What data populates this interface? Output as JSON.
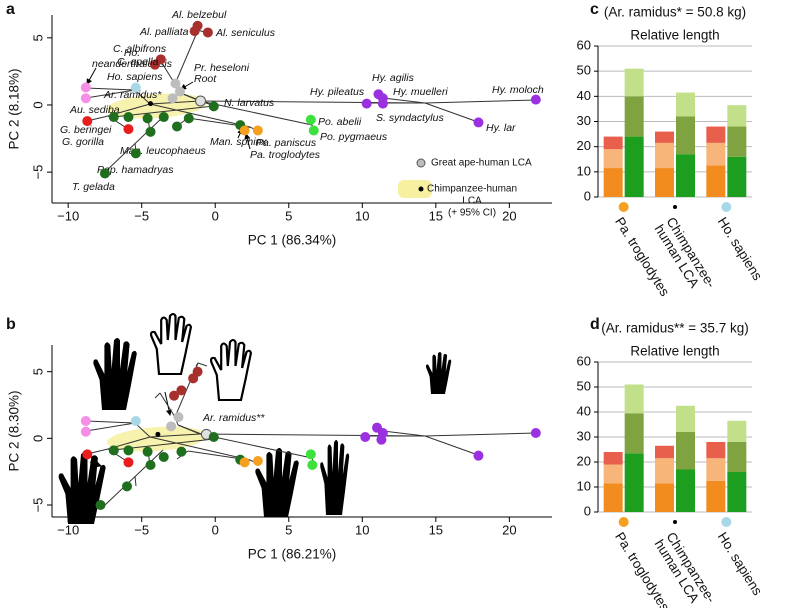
{
  "chart_data": [
    {
      "type": "scatter",
      "panel": "a",
      "xlabel": "PC 1 (86.34%)",
      "ylabel": "PC 2 (8.18%)",
      "xlim": [
        -11.1,
        22.9
      ],
      "ylim": [
        -7.3,
        6.7
      ],
      "xticks": [
        {
          "value": -10,
          "label": "−10"
        },
        {
          "value": -5,
          "label": "−5"
        },
        0,
        5,
        10,
        15,
        20
      ],
      "yticks": [
        {
          "value": -5,
          "label": "−5"
        },
        0,
        5
      ],
      "legend": [
        {
          "label": "Great ape-human LCA",
          "color": "#bdbdbd"
        },
        {
          "label": [
            "Chimpanzee-human",
            "LCA",
            "(+ 95% CI)"
          ],
          "color": "#000000"
        }
      ],
      "points": [
        {
          "x": -8.8,
          "y": 1.3,
          "color": "#f58ee6",
          "label": [
            "Ho.",
            "neanderthalensis"
          ]
        },
        {
          "x": -8.8,
          "y": 0.5,
          "color": "#f58ee6",
          "label": "Au. sediba"
        },
        {
          "x": -5.4,
          "y": 1.3,
          "color": "#a8d8e8",
          "label": "Ho. sapiens"
        },
        {
          "x": -8.7,
          "y": -1.2,
          "color": "#e81e1e",
          "label": "G. beringei"
        },
        {
          "x": -5.9,
          "y": -1.8,
          "color": "#e81e1e",
          "label": "G. gorilla"
        },
        {
          "x": -1.2,
          "y": 5.9,
          "color": "#a8302c",
          "label": "Al. belzebul"
        },
        {
          "x": -1.4,
          "y": 5.5,
          "color": "#a8302c",
          "label": "Al. palliata"
        },
        {
          "x": -0.5,
          "y": 5.4,
          "color": "#a8302c",
          "label": "Al. seniculus"
        },
        {
          "x": -3.7,
          "y": 3.4,
          "color": "#a8302c",
          "label": "C. albifrons"
        },
        {
          "x": -4.1,
          "y": 3.0,
          "color": "#a8302c",
          "label": "C. apella"
        },
        {
          "x": -2.7,
          "y": 1.6,
          "color": "#bdbdbd",
          "label": "Pr. heseloni"
        },
        {
          "x": -2.4,
          "y": 1.0,
          "color": "#bdbdbd",
          "label": "Root"
        },
        {
          "x": -2.9,
          "y": 0.5,
          "color": "#bdbdbd",
          "label": "Ar. ramidus*"
        },
        {
          "x": -4.4,
          "y": 0.1,
          "color": "#000000"
        },
        {
          "x": -1.0,
          "y": 0.3,
          "color": "#e0e0e0"
        },
        {
          "x": -0.1,
          "y": -0.1,
          "color": "#1f6f1f",
          "label": "N. larvatus"
        },
        {
          "x": -6.9,
          "y": -0.9,
          "color": "#1f6f1f"
        },
        {
          "x": -5.9,
          "y": -0.9,
          "color": "#1f6f1f"
        },
        {
          "x": -4.6,
          "y": -1.0,
          "color": "#1f6f1f"
        },
        {
          "x": -3.5,
          "y": -0.9,
          "color": "#1f6f1f"
        },
        {
          "x": -1.8,
          "y": -1.0,
          "color": "#1f6f1f"
        },
        {
          "x": -4.4,
          "y": -2.0,
          "color": "#1f6f1f",
          "label": "Man. leucophaeus"
        },
        {
          "x": -5.4,
          "y": -3.6,
          "color": "#1f6f1f",
          "label": "Pap. hamadryas"
        },
        {
          "x": -7.5,
          "y": -5.1,
          "color": "#1f6f1f",
          "label": "T. gelada"
        },
        {
          "x": 1.7,
          "y": -1.5,
          "color": "#1f6f1f",
          "label": "Man. sphinx"
        },
        {
          "x": 2.9,
          "y": -1.9,
          "color": "#f5a020",
          "label": "Pa. paniscus"
        },
        {
          "x": 2.0,
          "y": -1.9,
          "color": "#f5a020",
          "label": "Pa. troglodytes"
        },
        {
          "x": 6.5,
          "y": -1.1,
          "color": "#3ee03e",
          "label": "Po. abelii"
        },
        {
          "x": 6.7,
          "y": -1.9,
          "color": "#3ee03e",
          "label": "Po. pygmaeus"
        },
        {
          "x": 10.3,
          "y": 0.1,
          "color": "#9b30e0",
          "label": "Hy. pileatus"
        },
        {
          "x": 11.1,
          "y": 0.8,
          "color": "#9b30e0",
          "label": "Hy. agilis"
        },
        {
          "x": 11.4,
          "y": 0.5,
          "color": "#9b30e0",
          "label": "Hy. muelleri"
        },
        {
          "x": 11.4,
          "y": 0.1,
          "color": "#9b30e0",
          "label": "S. syndactylus"
        },
        {
          "x": 21.8,
          "y": 0.4,
          "color": "#9b30e0",
          "label": "Hy. moloch"
        },
        {
          "x": 17.9,
          "y": -1.3,
          "color": "#9b30e0",
          "label": "Hy. lar"
        },
        {
          "x": -2.6,
          "y": -1.6,
          "color": "#1f6f1f"
        }
      ]
    },
    {
      "type": "scatter",
      "panel": "b",
      "xlabel": "PC 1 (86.21%)",
      "ylabel": "PC 2 (8.30%)",
      "xlim": [
        -11.1,
        22.9
      ],
      "ylim": [
        -5.9,
        7.0
      ],
      "xticks": [
        {
          "value": -10,
          "label": "−10"
        },
        {
          "value": -5,
          "label": "−5"
        },
        0,
        5,
        10,
        15,
        20
      ],
      "yticks": [
        {
          "value": -5,
          "label": "−5"
        },
        0,
        5
      ],
      "points": [
        {
          "x": -8.8,
          "y": 1.3,
          "color": "#f58ee6"
        },
        {
          "x": -8.8,
          "y": 0.5,
          "color": "#f58ee6"
        },
        {
          "x": -5.4,
          "y": 1.3,
          "color": "#a8d8e8"
        },
        {
          "x": -8.7,
          "y": -1.2,
          "color": "#e81e1e"
        },
        {
          "x": -5.9,
          "y": -1.8,
          "color": "#e81e1e"
        },
        {
          "x": -1.2,
          "y": 5.0,
          "color": "#a8302c"
        },
        {
          "x": -1.5,
          "y": 4.5,
          "color": "#a8302c"
        },
        {
          "x": -2.3,
          "y": 3.6,
          "color": "#a8302c"
        },
        {
          "x": -2.8,
          "y": 3.2,
          "color": "#a8302c"
        },
        {
          "x": -2.5,
          "y": 1.6,
          "color": "#bdbdbd"
        },
        {
          "x": -3.0,
          "y": 0.9,
          "color": "#bdbdbd",
          "label": "Ar. ramidus**"
        },
        {
          "x": -3.9,
          "y": 0.3,
          "color": "#000000"
        },
        {
          "x": -0.6,
          "y": 0.3,
          "color": "#e0e0e0"
        },
        {
          "x": -0.1,
          "y": 0.1,
          "color": "#1f6f1f"
        },
        {
          "x": -6.9,
          "y": -0.9,
          "color": "#1f6f1f"
        },
        {
          "x": -5.9,
          "y": -0.9,
          "color": "#1f6f1f"
        },
        {
          "x": -4.6,
          "y": -1.0,
          "color": "#1f6f1f"
        },
        {
          "x": -3.5,
          "y": -1.4,
          "color": "#1f6f1f"
        },
        {
          "x": -2.3,
          "y": -1.0,
          "color": "#1f6f1f"
        },
        {
          "x": -4.4,
          "y": -2.0,
          "color": "#1f6f1f"
        },
        {
          "x": -6.0,
          "y": -3.6,
          "color": "#1f6f1f"
        },
        {
          "x": -7.8,
          "y": -5.0,
          "color": "#1f6f1f"
        },
        {
          "x": 1.7,
          "y": -1.6,
          "color": "#1f6f1f"
        },
        {
          "x": 2.9,
          "y": -1.7,
          "color": "#f5a020"
        },
        {
          "x": 2.0,
          "y": -1.8,
          "color": "#f5a020"
        },
        {
          "x": 6.5,
          "y": -1.2,
          "color": "#3ee03e"
        },
        {
          "x": 6.6,
          "y": -2.0,
          "color": "#3ee03e"
        },
        {
          "x": 10.2,
          "y": 0.1,
          "color": "#9b30e0"
        },
        {
          "x": 11.0,
          "y": 0.8,
          "color": "#9b30e0"
        },
        {
          "x": 11.4,
          "y": 0.4,
          "color": "#9b30e0"
        },
        {
          "x": 11.3,
          "y": -0.1,
          "color": "#9b30e0"
        },
        {
          "x": 21.8,
          "y": 0.4,
          "color": "#9b30e0"
        },
        {
          "x": 17.9,
          "y": -1.3,
          "color": "#9b30e0"
        }
      ]
    },
    {
      "type": "stacked_bar",
      "panel": "c",
      "title": "(Ar. ramidus* = 50.8 kg)",
      "subtitle": "Relative length",
      "categories": [
        "Pa. troglodytes",
        [
          "Chimpanzee-",
          "human LCA"
        ],
        "Ho. sapiens"
      ],
      "marker_colors": [
        "#f5a020",
        "#000000",
        "#a8d8e8"
      ],
      "ylim": [
        0,
        60
      ],
      "yticks": [
        0,
        10,
        20,
        30,
        40,
        50,
        60
      ],
      "grid": true,
      "stacks": [
        {
          "series": [
            {
              "color": "#f28c1e",
              "values": [
                11.5,
                11.5,
                12.5
              ]
            },
            {
              "color": "#f7b57a",
              "values": [
                7.5,
                10,
                9
              ]
            },
            {
              "color": "#e8604c",
              "values": [
                5,
                4.5,
                6.5
              ]
            }
          ]
        },
        {
          "series": [
            {
              "color": "#1e9e1e",
              "values": [
                24,
                17,
                16
              ]
            },
            {
              "color": "#7ea340",
              "values": [
                16,
                15,
                12
              ]
            },
            {
              "color": "#c2e08a",
              "values": [
                11,
                9.5,
                8.5
              ]
            }
          ]
        }
      ]
    },
    {
      "type": "stacked_bar",
      "panel": "d",
      "title": "(Ar. ramidus** = 35.7 kg)",
      "subtitle": "Relative length",
      "categories": [
        "Pa. troglodytes",
        [
          "Chimpanzee-",
          "human LCA"
        ],
        "Ho. sapiens"
      ],
      "marker_colors": [
        "#f5a020",
        "#000000",
        "#a8d8e8"
      ],
      "ylim": [
        0,
        60
      ],
      "yticks": [
        0,
        10,
        20,
        30,
        40,
        50,
        60
      ],
      "grid": true,
      "stacks": [
        {
          "series": [
            {
              "color": "#f28c1e",
              "values": [
                11.5,
                11.5,
                12.5
              ]
            },
            {
              "color": "#f7b57a",
              "values": [
                7.5,
                10,
                9
              ]
            },
            {
              "color": "#e8604c",
              "values": [
                5,
                5,
                6.5
              ]
            }
          ]
        },
        {
          "series": [
            {
              "color": "#1e9e1e",
              "values": [
                23.5,
                17,
                16
              ]
            },
            {
              "color": "#7ea340",
              "values": [
                16,
                15,
                12
              ]
            },
            {
              "color": "#c2e08a",
              "values": [
                11.5,
                10.5,
                8.5
              ]
            }
          ]
        }
      ]
    }
  ]
}
